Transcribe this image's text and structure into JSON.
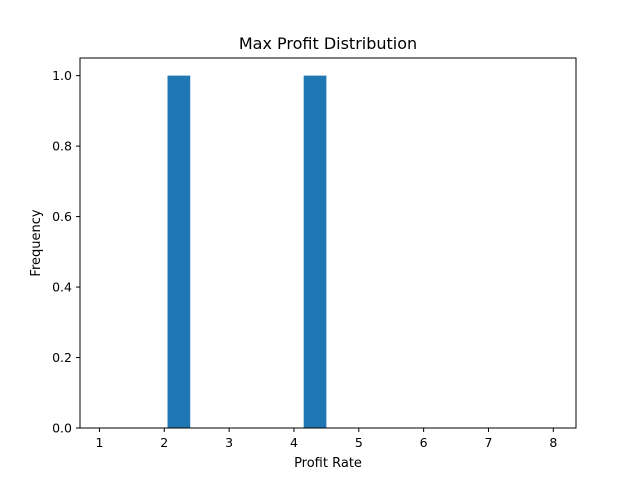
{
  "chart_data": {
    "type": "bar",
    "title": "Max Profit Distribution",
    "xlabel": "Profit Rate",
    "ylabel": "Frequency",
    "xlim": [
      0.7,
      8.35
    ],
    "ylim": [
      0.0,
      1.05
    ],
    "xticks": [
      "1",
      "2",
      "3",
      "4",
      "5",
      "6",
      "7",
      "8"
    ],
    "yticks": [
      "0.0",
      "0.2",
      "0.4",
      "0.6",
      "0.8",
      "1.0"
    ],
    "bars": [
      {
        "x0": 2.05,
        "x1": 2.4,
        "value": 1
      },
      {
        "x0": 4.15,
        "x1": 4.5,
        "value": 1
      }
    ],
    "bar_color": "#1f77b4",
    "grid": false,
    "legend": "none"
  }
}
